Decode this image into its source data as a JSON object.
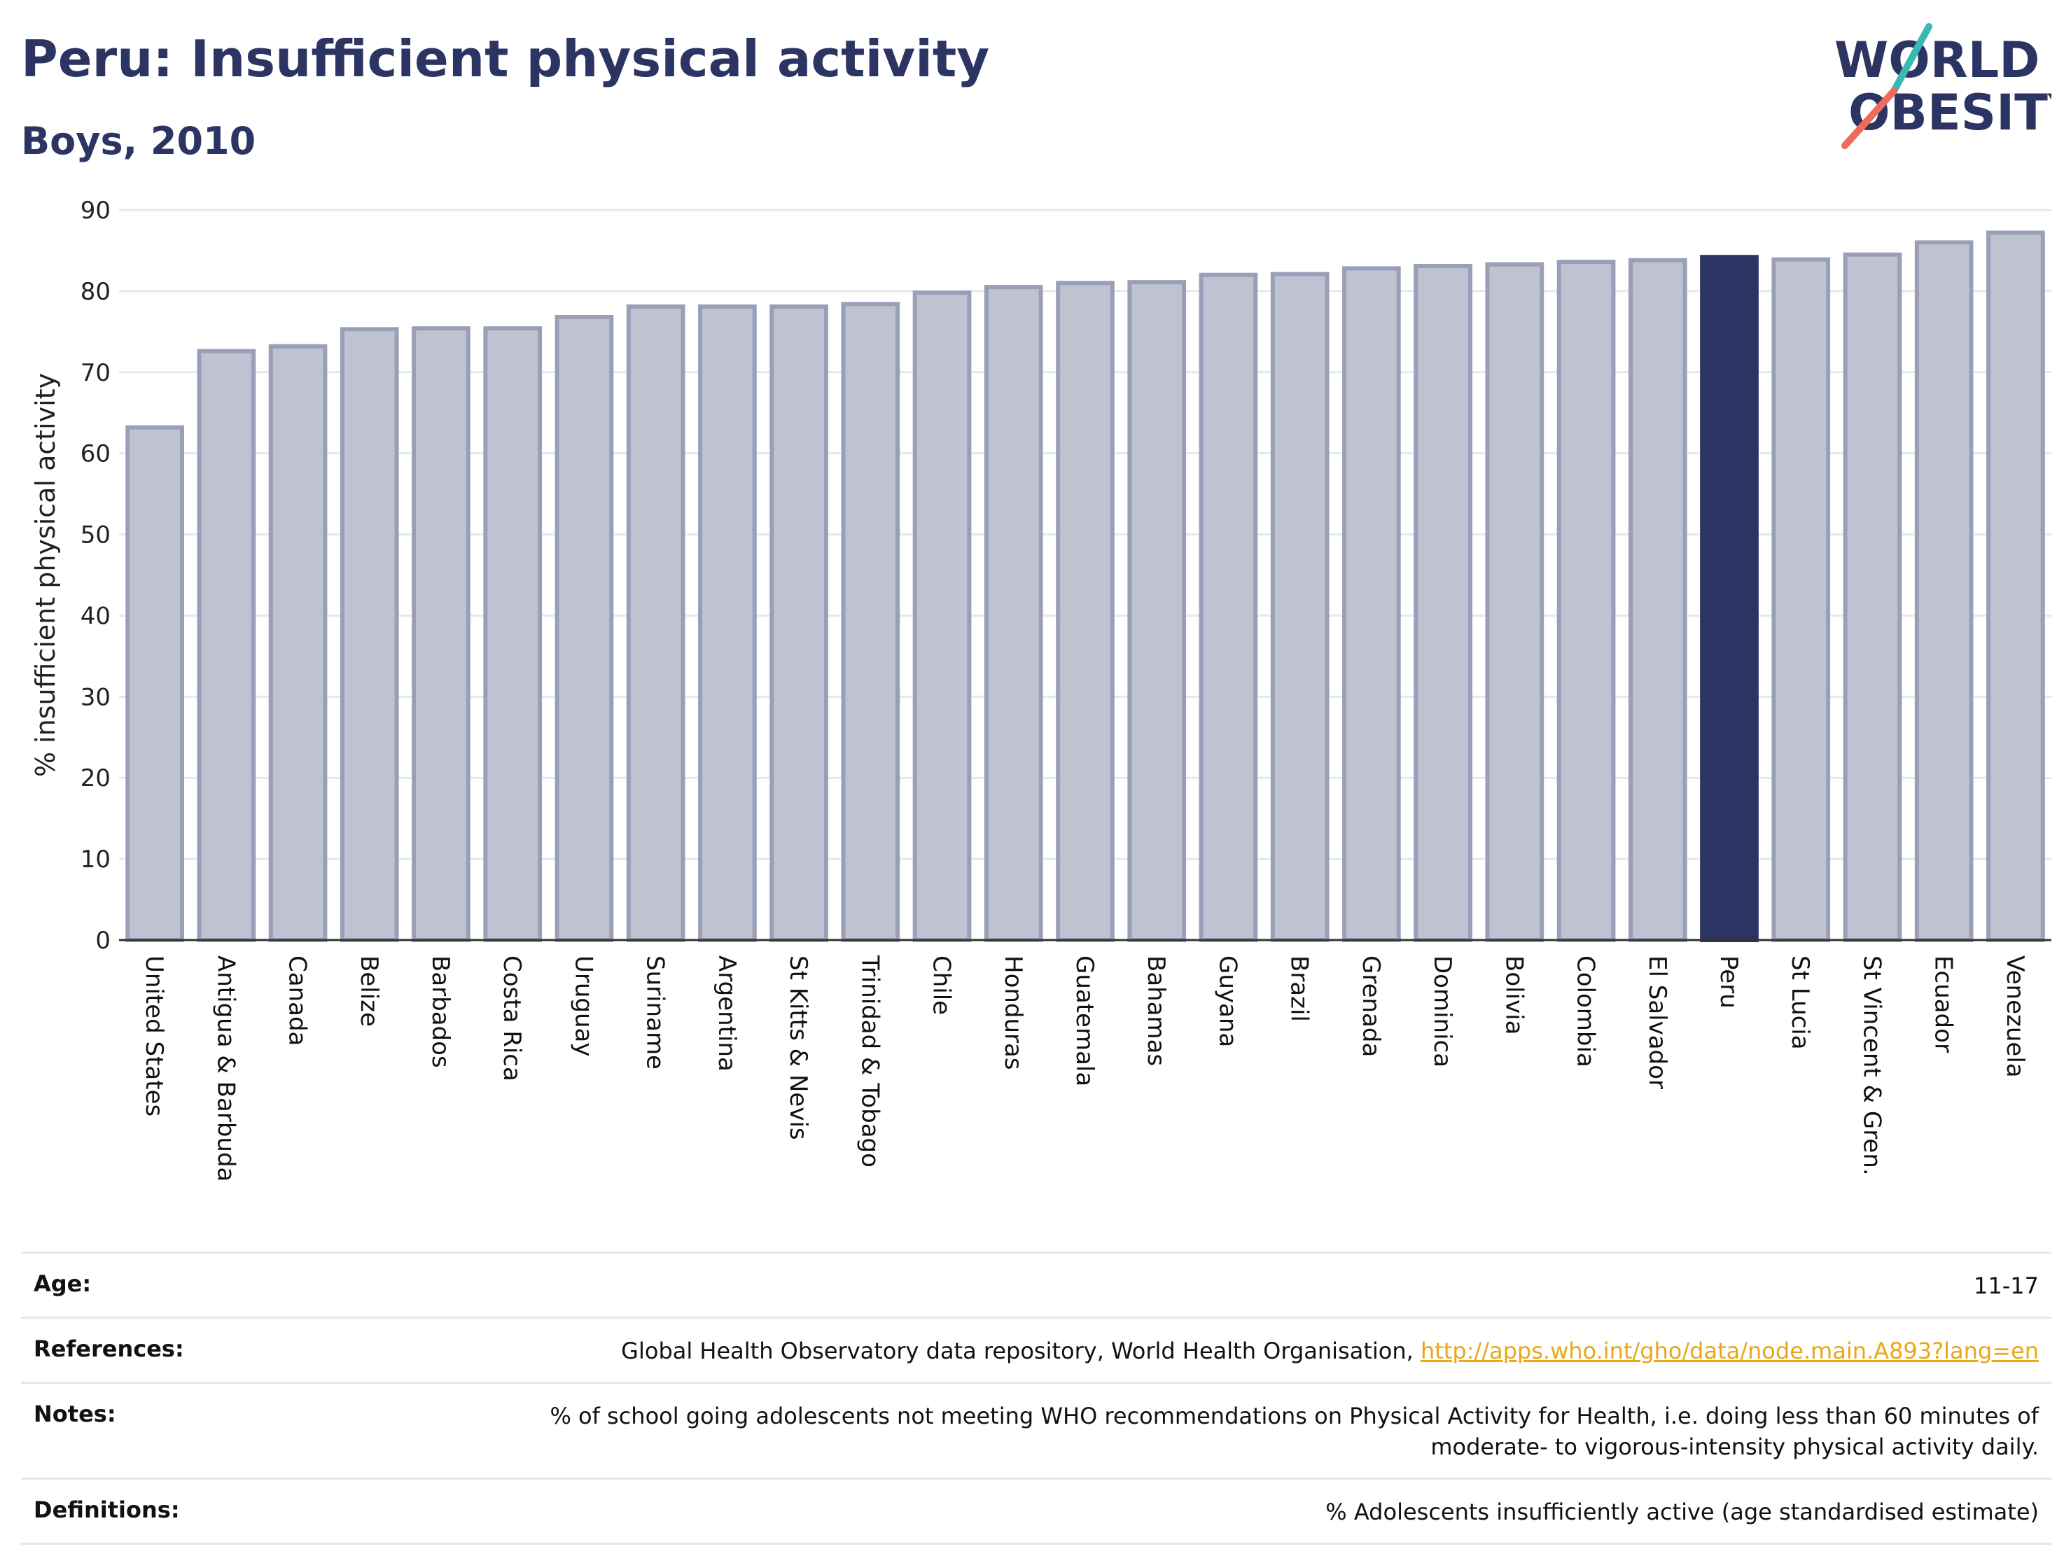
{
  "header": {
    "title": "Peru: Insufficient physical activity",
    "subtitle": "Boys, 2010"
  },
  "logo": {
    "line1": "WORLD",
    "line2": "OBESITY"
  },
  "colors": {
    "bar_fill": "#bfc2d0",
    "bar_stroke": "#9a9fb8",
    "highlight": "#2b3462",
    "grid": "#e6e8ef",
    "axis": "#333333",
    "link": "#e8a817"
  },
  "chart_data": {
    "type": "bar",
    "ylabel": "% insufficient physical activity",
    "ylim": [
      0,
      90
    ],
    "yticks": [
      0,
      10,
      20,
      30,
      40,
      50,
      60,
      70,
      80,
      90
    ],
    "grid": true,
    "highlight_category": "Peru",
    "categories": [
      "United States",
      "Antigua & Barbuda",
      "Canada",
      "Belize",
      "Barbados",
      "Costa Rica",
      "Uruguay",
      "Suriname",
      "Argentina",
      "St Kitts & Nevis",
      "Trinidad & Tobago",
      "Chile",
      "Honduras",
      "Guatemala",
      "Bahamas",
      "Guyana",
      "Brazil",
      "Grenada",
      "Dominica",
      "Bolivia",
      "Colombia",
      "El Salvador",
      "Peru",
      "St Lucia",
      "St Vincent & Gren.",
      "Ecuador",
      "Venezuela"
    ],
    "values": [
      63.2,
      72.6,
      73.2,
      75.3,
      75.4,
      75.4,
      76.8,
      78.1,
      78.1,
      78.1,
      78.4,
      79.8,
      80.5,
      81.0,
      81.1,
      82.0,
      82.1,
      82.8,
      83.1,
      83.3,
      83.6,
      83.8,
      84.2,
      83.9,
      84.5,
      86.0,
      87.2
    ]
  },
  "info": {
    "age": {
      "label": "Age:",
      "value": "11-17"
    },
    "references": {
      "label": "References:",
      "text": "Global Health Observatory data repository, World Health Organisation, ",
      "link": "http://apps.who.int/gho/data/node.main.A893?lang=en"
    },
    "notes": {
      "label": "Notes:",
      "line1": "% of school going adolescents not meeting WHO recommendations on Physical Activity for Health, i.e. doing less than 60 minutes of",
      "line2": "moderate- to vigorous-intensity physical activity daily."
    },
    "definitions": {
      "label": "Definitions:",
      "value": "% Adolescents insufficiently active (age standardised estimate)"
    }
  }
}
